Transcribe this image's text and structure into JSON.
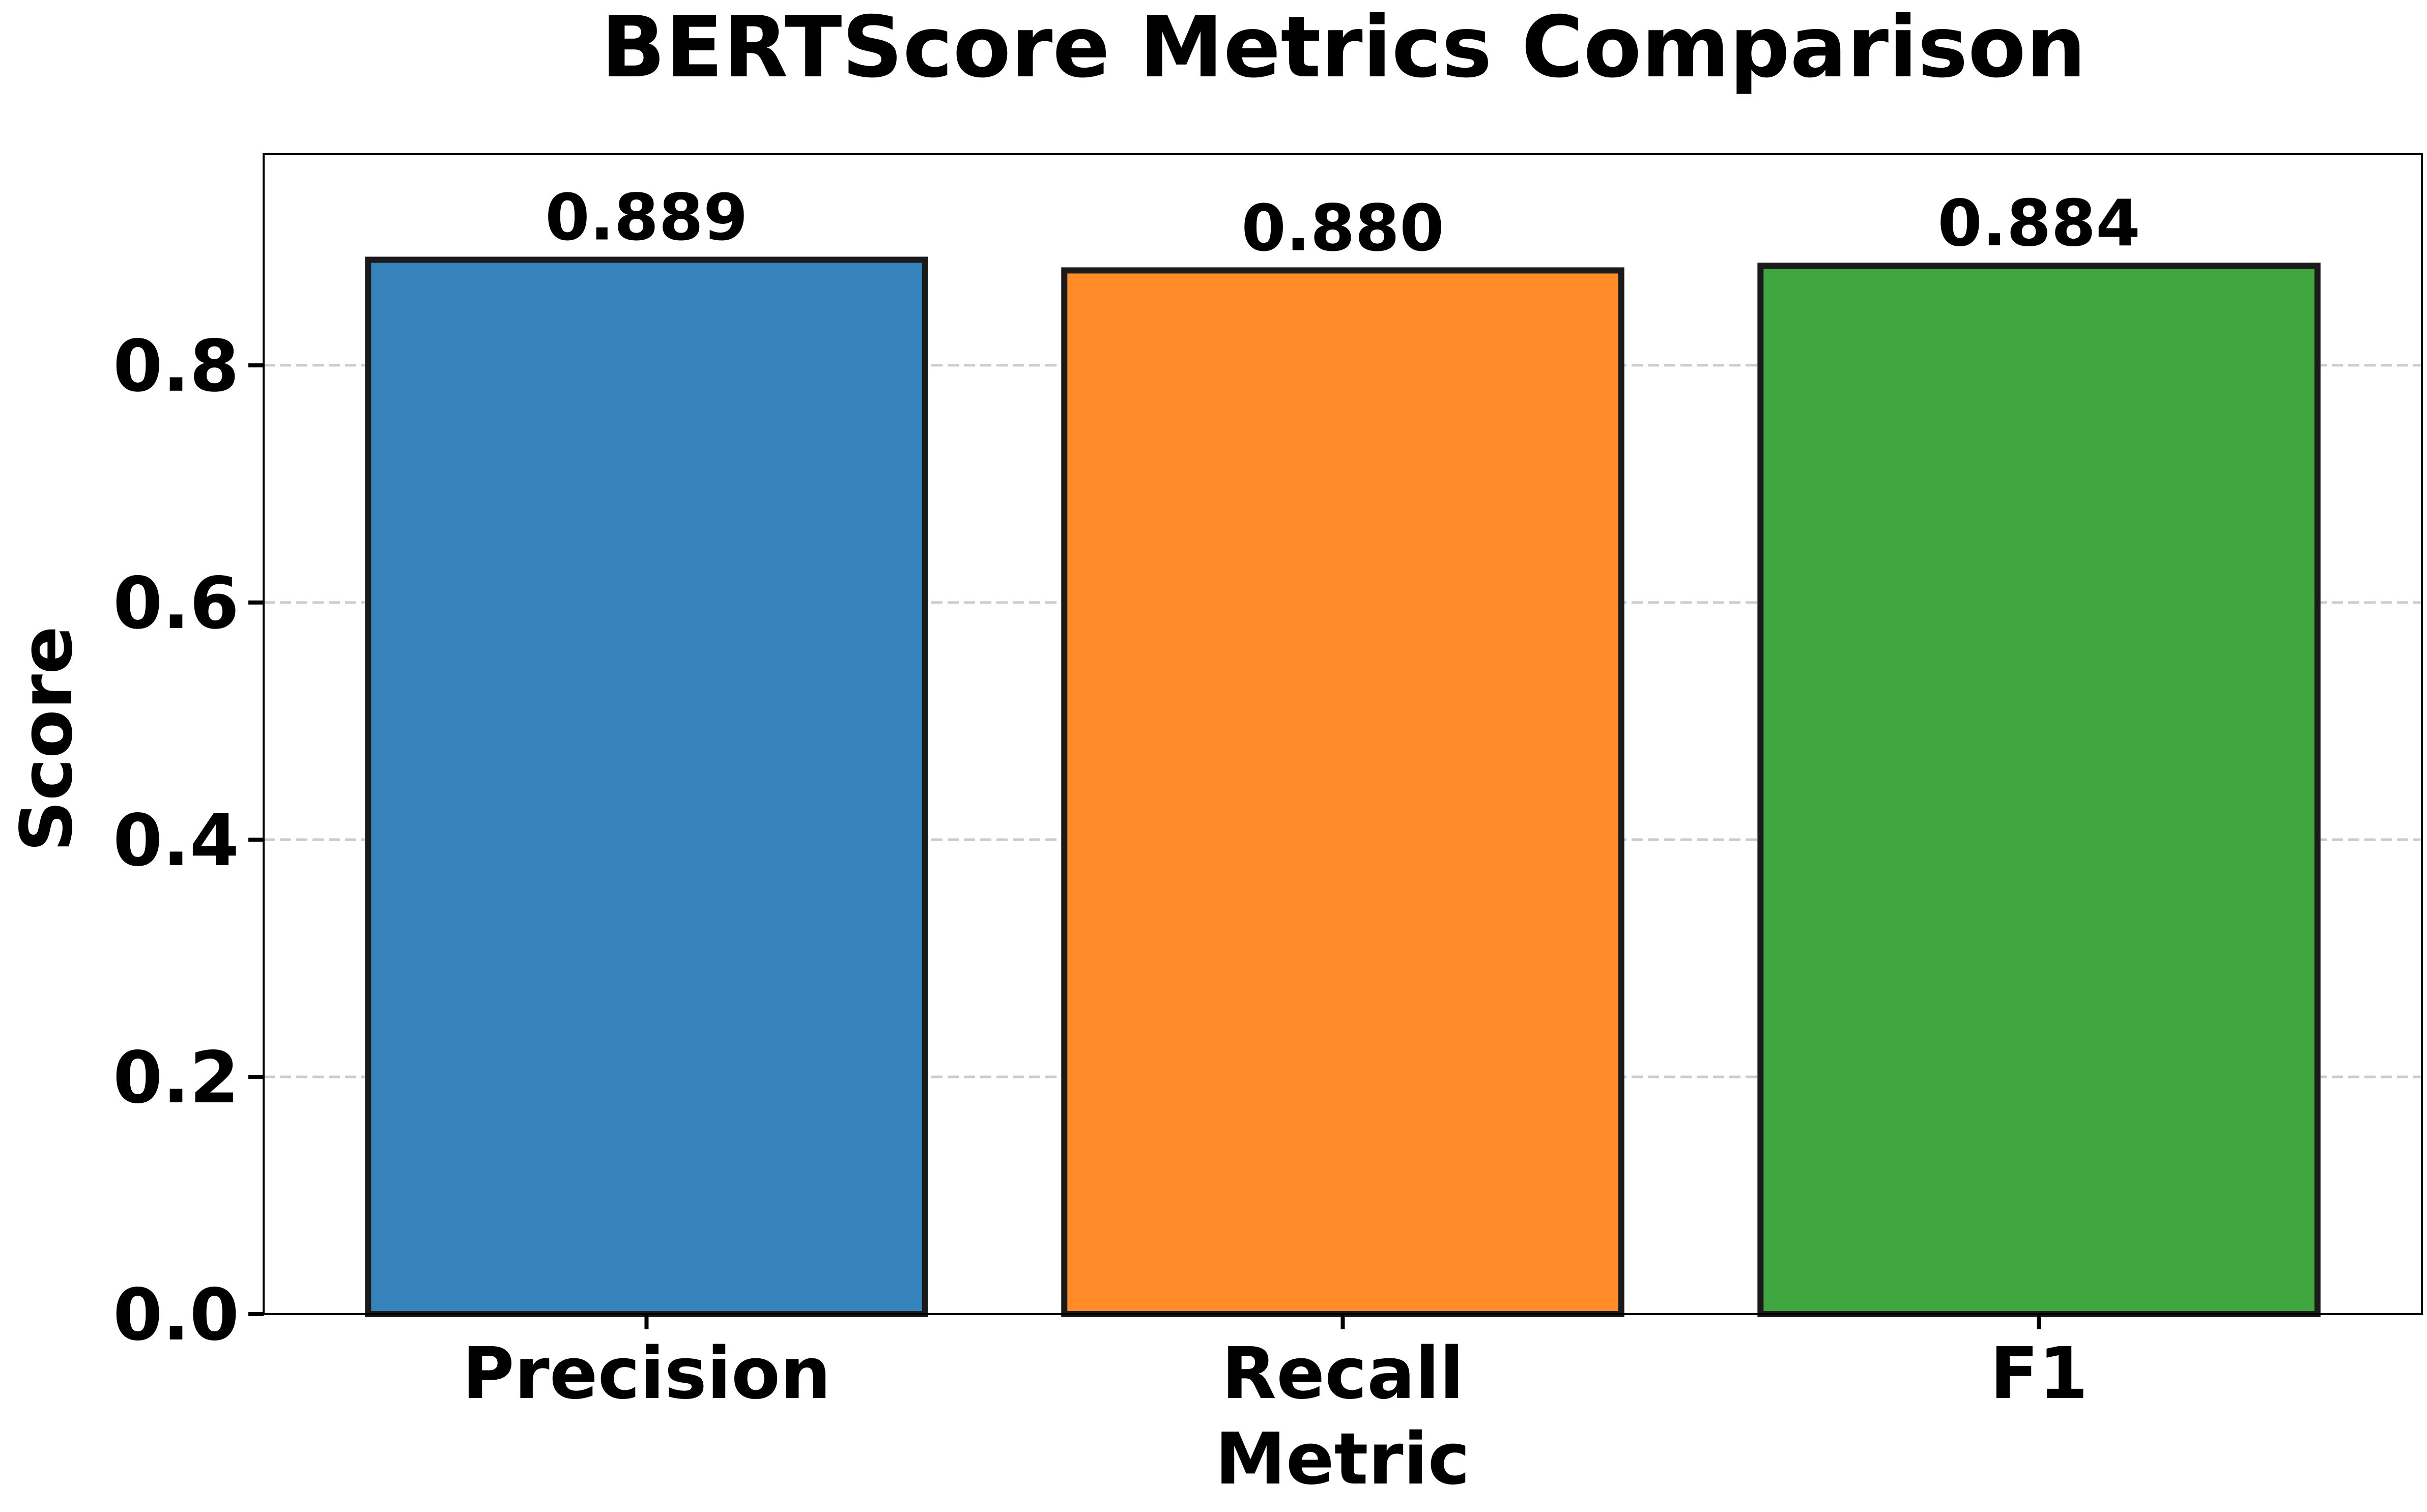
{
  "chart_data": {
    "type": "bar",
    "title": "BERTScore Metrics Comparison",
    "xlabel": "Metric",
    "ylabel": "Score",
    "categories": [
      "Precision",
      "Recall",
      "F1"
    ],
    "values": [
      0.889,
      0.88,
      0.884
    ],
    "data_labels": [
      "0.889",
      "0.880",
      "0.884"
    ],
    "colors": [
      "#3683bb",
      "#ff8c28",
      "#40a740"
    ],
    "ylim": [
      0,
      0.978
    ],
    "yticks": [
      0.0,
      0.2,
      0.4,
      0.6,
      0.8
    ],
    "ytick_labels": [
      "0.0",
      "0.2",
      "0.4",
      "0.6",
      "0.8"
    ],
    "grid": "y-dashed",
    "legend": "none"
  }
}
